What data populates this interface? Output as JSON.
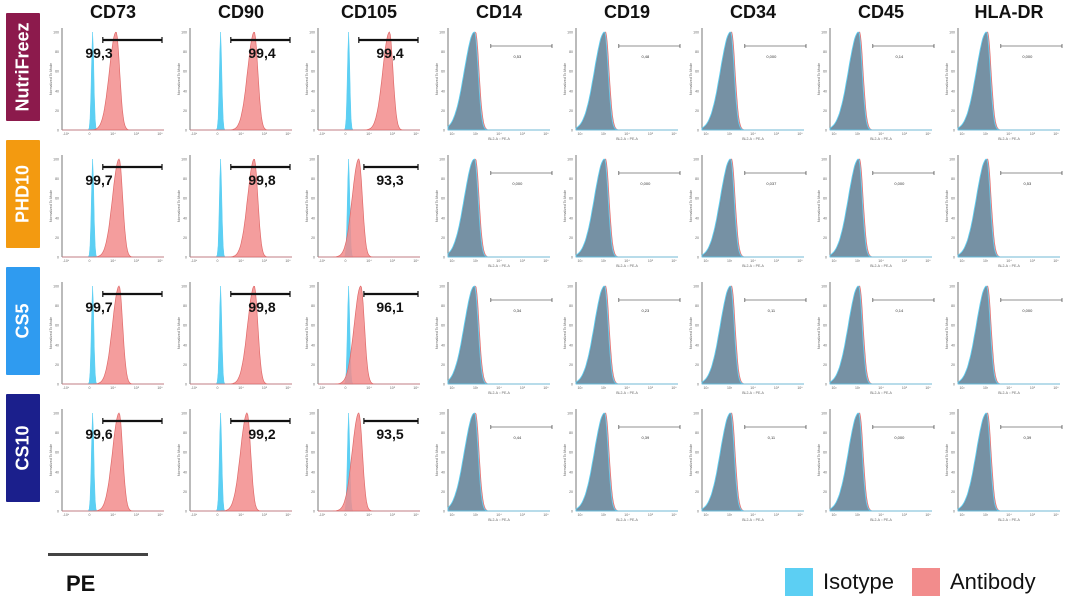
{
  "colors": {
    "isotype": "#5ccff3",
    "antibody": "#f28c8c",
    "overlap": "#5f8fa6",
    "row_nutrifreez": "#8c1a4c",
    "row_phd10": "#f39a10",
    "row_cs5": "#2f9bf0",
    "row_cs10": "#1b1f8c"
  },
  "chart_data": {
    "type": "histogram-grid",
    "columns": [
      "CD73",
      "CD90",
      "CD105",
      "CD14",
      "CD19",
      "CD34",
      "CD45",
      "HLA-DR"
    ],
    "rows": [
      {
        "label": "NutriFreez",
        "color_key": "row_nutrifreez",
        "values": [
          "99,3",
          "99,4",
          "99,4",
          "0,53",
          "0,48",
          "0,000",
          "0,14",
          "0,000"
        ],
        "antibody_peak": [
          0.53,
          0.63,
          0.7,
          0.26,
          0.28,
          0.28,
          0.28,
          0.28
        ]
      },
      {
        "label": "PHD10",
        "color_key": "row_phd10",
        "values": [
          "99,7",
          "99,8",
          "93,3",
          "0,000",
          "0,000",
          "0,037",
          "0,000",
          "0,53"
        ],
        "antibody_peak": [
          0.56,
          0.63,
          0.4,
          0.26,
          0.28,
          0.28,
          0.28,
          0.28
        ]
      },
      {
        "label": "CS5",
        "color_key": "row_cs5",
        "values": [
          "99,7",
          "99,8",
          "96,1",
          "0,34",
          "0,23",
          "0,11",
          "0,14",
          "0,000"
        ],
        "antibody_peak": [
          0.56,
          0.63,
          0.42,
          0.26,
          0.28,
          0.28,
          0.28,
          0.28
        ]
      },
      {
        "label": "CS10",
        "color_key": "row_cs10",
        "values": [
          "99,6",
          "99,2",
          "93,5",
          "0,44",
          "0,39",
          "0,11",
          "0,000",
          "0,39"
        ],
        "antibody_peak": [
          0.56,
          0.56,
          0.4,
          0.26,
          0.28,
          0.28,
          0.28,
          0.28
        ]
      }
    ],
    "bright_columns": [
      "CD73",
      "CD90",
      "CD105"
    ],
    "dim_columns": [
      "CD14",
      "CD19",
      "CD34",
      "CD45",
      "HLA-DR"
    ],
    "y_axis_label": "Normalized To Mode",
    "y_ticks": [
      "0",
      "20",
      "40",
      "60",
      "80",
      "100"
    ],
    "x_ticks_bright": [
      "-10⁴",
      "0",
      "10⁴",
      "10⁵",
      "10⁶"
    ],
    "x_axis_label_dim": "BL2-A :: PE-A",
    "x_ticks_dim": [
      "10²",
      "10³",
      "10⁴",
      "10⁵",
      "10⁶"
    ]
  },
  "legend": {
    "isotype": "Isotype",
    "antibody": "Antibody"
  },
  "scale_label": "PE"
}
